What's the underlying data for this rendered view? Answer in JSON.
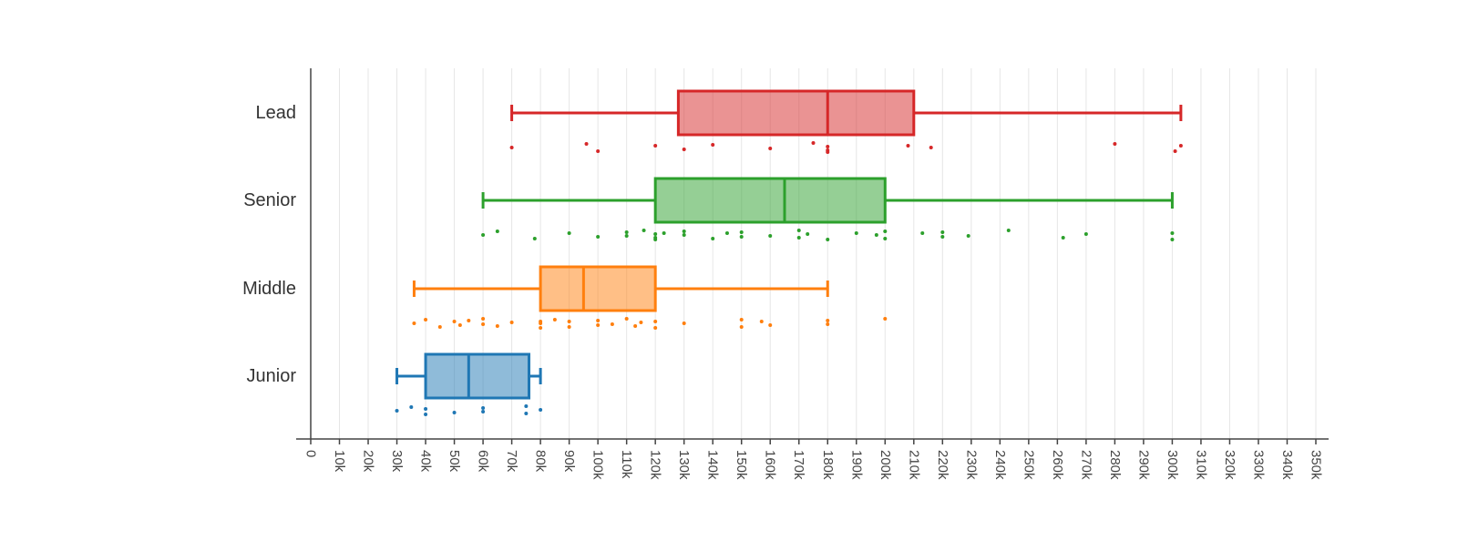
{
  "chart_data": {
    "type": "box",
    "orientation": "horizontal",
    "title": "",
    "xlabel": "",
    "ylabel": "",
    "xlim": [
      0,
      350000
    ],
    "x_tick_step": 10000,
    "x_tick_labels": [
      "0",
      "10k",
      "20k",
      "30k",
      "40k",
      "50k",
      "60k",
      "70k",
      "80k",
      "90k",
      "100k",
      "110k",
      "120k",
      "130k",
      "140k",
      "150k",
      "160k",
      "170k",
      "180k",
      "190k",
      "200k",
      "210k",
      "220k",
      "230k",
      "240k",
      "250k",
      "260k",
      "270k",
      "280k",
      "290k",
      "300k",
      "310k",
      "320k",
      "330k",
      "340k",
      "350k"
    ],
    "grid": true,
    "legend": "none",
    "categories": [
      "Lead",
      "Senior",
      "Middle",
      "Junior"
    ],
    "series": [
      {
        "category": "Lead",
        "color": "#d62728",
        "whisker_low": 70000,
        "q1": 128000,
        "median": 180000,
        "q3": 210000,
        "whisker_high": 303000,
        "points": [
          70000,
          96000,
          100000,
          120000,
          130000,
          140000,
          160000,
          175000,
          180000,
          180000,
          180000,
          208000,
          216000,
          280000,
          301000,
          303000
        ]
      },
      {
        "category": "Senior",
        "color": "#2ca02c",
        "whisker_low": 60000,
        "q1": 120000,
        "median": 165000,
        "q3": 200000,
        "whisker_high": 300000,
        "points": [
          60000,
          65000,
          78000,
          90000,
          100000,
          110000,
          110000,
          116000,
          120000,
          120000,
          120000,
          123000,
          130000,
          130000,
          140000,
          145000,
          150000,
          150000,
          160000,
          170000,
          170000,
          173000,
          180000,
          190000,
          197000,
          200000,
          200000,
          213000,
          220000,
          220000,
          229000,
          243000,
          262000,
          270000,
          300000,
          300000
        ]
      },
      {
        "category": "Middle",
        "color": "#ff7f0e",
        "whisker_low": 36000,
        "q1": 80000,
        "median": 95000,
        "q3": 120000,
        "whisker_high": 180000,
        "points": [
          36000,
          40000,
          45000,
          50000,
          52000,
          55000,
          60000,
          60000,
          65000,
          70000,
          80000,
          80000,
          80000,
          85000,
          90000,
          90000,
          100000,
          100000,
          105000,
          110000,
          113000,
          115000,
          120000,
          120000,
          130000,
          150000,
          150000,
          157000,
          160000,
          180000,
          180000,
          200000
        ]
      },
      {
        "category": "Junior",
        "color": "#1f77b4",
        "whisker_low": 30000,
        "q1": 40000,
        "median": 55000,
        "q3": 76000,
        "whisker_high": 80000,
        "points": [
          30000,
          35000,
          40000,
          40000,
          50000,
          60000,
          60000,
          75000,
          75000,
          80000
        ]
      }
    ]
  }
}
